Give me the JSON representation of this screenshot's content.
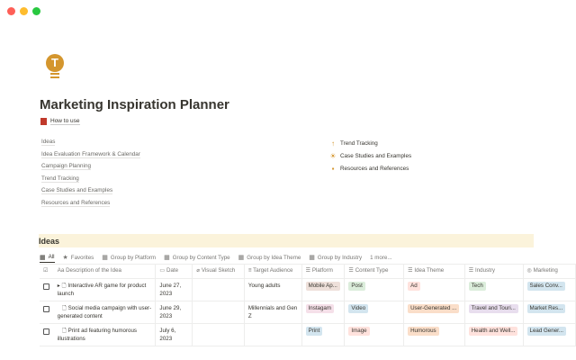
{
  "window": {
    "controls": [
      "close",
      "minimize",
      "maximize"
    ]
  },
  "page": {
    "title": "Marketing Inspiration Planner",
    "how_to": "How to use",
    "links": [
      "Ideas",
      "Idea Evaluation Framework & Calendar",
      "Campaign Planning",
      "Trend Tracking",
      "Case Studies and Examples",
      "Resources and References"
    ],
    "right_links": [
      {
        "icon": "arrow-up-icon",
        "glyph": "↑",
        "label": "Trend Tracking"
      },
      {
        "icon": "sun-icon",
        "glyph": "☀",
        "label": "Case Studies and Examples"
      },
      {
        "icon": "note-icon",
        "glyph": "▪",
        "label": "Resources and References"
      }
    ]
  },
  "db": {
    "title": "Ideas",
    "views": [
      "All",
      "Favorites",
      "Group by Platform",
      "Group by Content Type",
      "Group by Idea Theme",
      "Group by Industry",
      "1 more..."
    ],
    "columns": [
      "Aa Description of the Idea",
      "Date",
      "Visual Sketch",
      "Target Audience",
      "Platform",
      "Content Type",
      "Idea Theme",
      "Industry",
      "Marketing"
    ],
    "rows": [
      {
        "desc": "Interactive AR game for product launch",
        "date": "June 27, 2023",
        "audience": "Young adults",
        "platform": "Mobile Ap...",
        "content": "Post",
        "theme": "Ad",
        "industry": "Tech",
        "marketing": "Sales Conv..."
      },
      {
        "desc": "Social media campaign with user-generated content",
        "date": "June 29, 2023",
        "audience": "Millennials and Gen Z",
        "platform": "Instagam",
        "content": "Video",
        "theme": "User-Generated ...",
        "industry": "Travel and Touri...",
        "marketing": "Market Res..."
      },
      {
        "desc": "Print ad featuring humorous illustrations",
        "date": "July 6, 2023",
        "audience": "",
        "platform": "Print",
        "content": "Image",
        "theme": "Humorous",
        "industry": "Health and Well...",
        "marketing": "Lead Gener..."
      }
    ]
  },
  "colors": {
    "accent": "#d4962e",
    "banner": "#fbf3db",
    "tag_brown": "#eee0da",
    "tag_green": "#dbeddb",
    "tag_blue": "#d3e5ef",
    "tag_red": "#ffe2dd",
    "tag_pink": "#f5e0e9",
    "tag_orange": "#fadec9",
    "tag_purple": "#e8deee"
  }
}
